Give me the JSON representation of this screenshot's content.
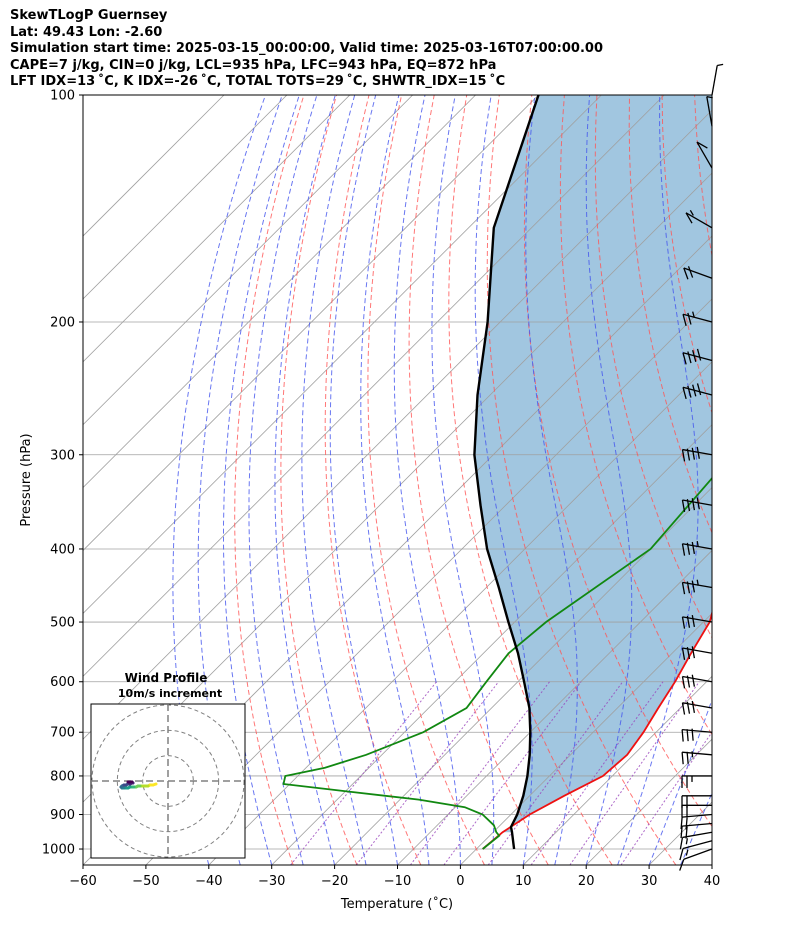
{
  "header": {
    "line1": "SkewTLogP Guernsey",
    "line2": "Lat: 49.43   Lon: -2.60",
    "line3": "Simulation start time: 2025-03-15_00:00:00, Valid time: 2025-03-16T07:00:00.00",
    "line4": "CAPE=7 j/kg, CIN=0 j/kg, LCL=935 hPa, LFC=943 hPa, EQ=872 hPa",
    "line5": "LFT IDX=13 ˚C, K IDX=-26 ˚C, TOTAL TOTS=29 ˚C, SHWTR_IDX=15 ˚C"
  },
  "colors": {
    "temperature": "#ee1111",
    "dewpoint": "#118811",
    "parcel": "#000000",
    "cape_fill": "#8ab8d8",
    "dry_adiabat": "#ff5555",
    "moist_adiabat": "#4455ee",
    "mixing_ratio": "#9944bb",
    "isotherm": "#a0a0a0",
    "hodograph_ring": "#808080"
  },
  "chart_data": [
    {
      "type": "line",
      "name": "skewT",
      "xlabel": "Temperature (˚C)",
      "ylabel": "Pressure (hPa)",
      "xlim": [
        -60,
        40
      ],
      "ylim": [
        1050,
        100
      ],
      "yscale": "log",
      "skew": true,
      "grid": true,
      "xticks": [
        -60,
        -50,
        -40,
        -30,
        -20,
        -10,
        0,
        10,
        20,
        30,
        40
      ],
      "yticks": [
        100,
        200,
        300,
        400,
        500,
        600,
        700,
        800,
        900,
        1000
      ],
      "series": [
        {
          "key": "temperature",
          "p": [
            1000,
            950,
            900,
            850,
            800,
            750,
            700,
            650,
            600,
            550,
            500,
            450,
            400,
            350,
            300,
            250,
            220,
            200,
            180,
            160,
            140,
            120,
            110,
            100
          ],
          "t": [
            1.0,
            1.5,
            3.0,
            5.5,
            8.5,
            9.0,
            8.0,
            6.5,
            5.0,
            3.0,
            1.0,
            -3.0,
            -8.5,
            -15.0,
            -22.0,
            -31.0,
            -35.5,
            -40.0,
            -43.0,
            -48.0,
            -54.0,
            -61.0,
            -64.0,
            -66.0
          ]
        },
        {
          "key": "dewpoint",
          "p": [
            1000,
            960,
            950,
            930,
            900,
            880,
            860,
            840,
            820,
            800,
            780,
            750,
            700,
            650,
            600,
            550,
            500,
            400,
            300,
            250,
            200,
            180,
            170,
            160,
            140,
            120,
            100
          ],
          "t": [
            1.0,
            1.5,
            0.5,
            -1.0,
            -4.5,
            -8.5,
            -17.0,
            -29.0,
            -41.0,
            -42.0,
            -37.0,
            -32.5,
            -27.0,
            -24.0,
            -25.0,
            -26.0,
            -25.0,
            -20.0,
            -22.0,
            -30.0,
            -37.0,
            -42.0,
            -45.0,
            -49.0,
            -54.0,
            -58.0,
            -63.0
          ]
        },
        {
          "key": "parcel",
          "p": [
            1000,
            950,
            935,
            900,
            850,
            800,
            750,
            700,
            650,
            600,
            550,
            500,
            450,
            400,
            350,
            300,
            250,
            200,
            150,
            100
          ],
          "t": [
            6.0,
            3.0,
            2.0,
            1.0,
            -1.0,
            -3.5,
            -6.5,
            -10.0,
            -14.0,
            -19.0,
            -24.5,
            -31.0,
            -38.0,
            -46.0,
            -54.0,
            -63.0,
            -72.0,
            -82.0,
            -96.0,
            -110.0
          ]
        }
      ],
      "cape_fill_between": [
        "temperature",
        "parcel"
      ],
      "wind_barbs": {
        "p": [
          1000,
          975,
          950,
          925,
          900,
          875,
          850,
          800,
          750,
          700,
          650,
          600,
          550,
          500,
          450,
          400,
          350,
          300,
          250,
          225,
          200,
          175,
          150,
          125,
          110,
          100
        ],
        "speed_kt": [
          10,
          15,
          15,
          20,
          20,
          20,
          20,
          25,
          25,
          30,
          30,
          30,
          30,
          30,
          35,
          35,
          40,
          40,
          40,
          40,
          25,
          20,
          15,
          10,
          5,
          5
        ],
        "direction_deg": [
          250,
          255,
          260,
          265,
          265,
          270,
          270,
          270,
          275,
          275,
          280,
          280,
          280,
          280,
          280,
          280,
          280,
          280,
          285,
          285,
          285,
          290,
          300,
          330,
          350,
          10
        ]
      }
    },
    {
      "type": "line",
      "name": "hodograph",
      "title": "Wind Profile",
      "subtitle": "10m/s increment",
      "ring_step": 10,
      "rings": [
        10,
        20,
        30
      ],
      "u": [
        -12,
        -15,
        -18,
        -20,
        -22,
        -25,
        -28,
        -30,
        -32,
        -34,
        -36,
        -38,
        -40,
        -42,
        -44,
        -45,
        -46,
        -47,
        -46,
        -44,
        -42,
        -40,
        -38,
        -36,
        -35,
        -36,
        -38,
        -40
      ],
      "v": [
        -3,
        -4,
        -4,
        -5,
        -5,
        -5,
        -5,
        -5,
        -6,
        -6,
        -6,
        -6,
        -7,
        -7,
        -7,
        -7,
        -7,
        -6,
        -5,
        -4,
        -4,
        -3,
        -3,
        -2,
        -2,
        -1,
        -1,
        -1
      ],
      "colormap": [
        "#fde725",
        "#b5de2b",
        "#6ece58",
        "#35b779",
        "#1f9e89",
        "#26828e",
        "#31688e",
        "#3e4989",
        "#482878",
        "#440154"
      ]
    }
  ]
}
